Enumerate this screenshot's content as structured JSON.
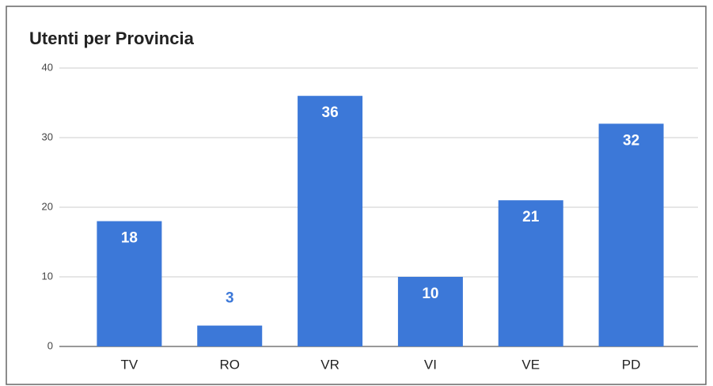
{
  "chart_data": {
    "type": "bar",
    "title": "Utenti per Provincia",
    "categories": [
      "TV",
      "RO",
      "VR",
      "VI",
      "VE",
      "PD"
    ],
    "values": [
      18,
      3,
      36,
      10,
      21,
      32
    ],
    "color": "#3c78d8",
    "ylim": [
      0,
      40
    ],
    "yticks": [
      0,
      10,
      20,
      30,
      40
    ],
    "grid": true
  }
}
